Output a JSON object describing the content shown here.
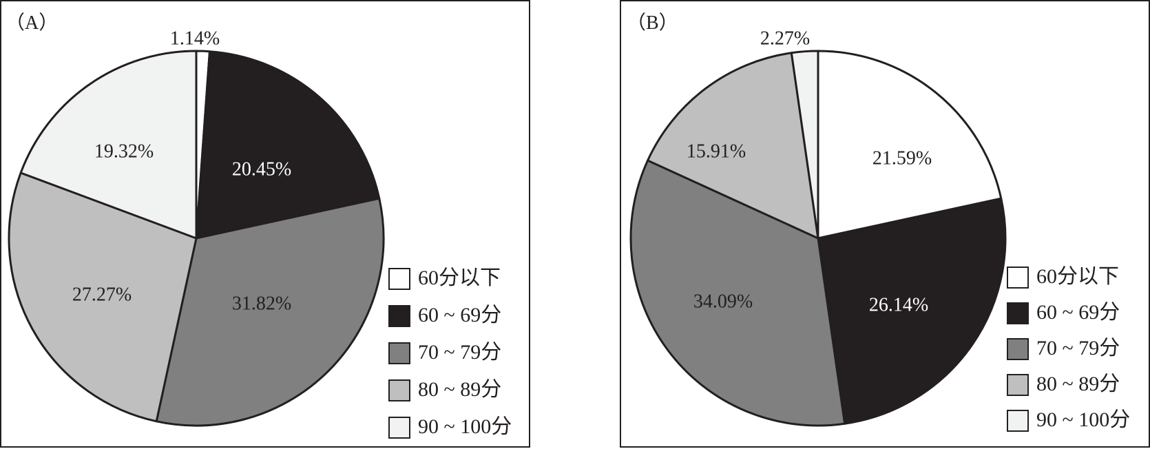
{
  "chart_data": [
    {
      "type": "pie",
      "panel_label": "（A）",
      "categories": [
        "60分以下",
        "60 ~ 69分",
        "70 ~ 79分",
        "80 ~ 89分",
        "90 ~ 100分"
      ],
      "values": [
        1.14,
        20.45,
        31.82,
        27.27,
        19.32
      ],
      "value_labels": [
        "1.14%",
        "20.45%",
        "31.82%",
        "27.27%",
        "19.32%"
      ],
      "colors": [
        "#ffffff",
        "#231f20",
        "#808080",
        "#bfbfbf",
        "#f1f2f2"
      ],
      "start": "top, clockwise",
      "legend_position": "bottom-right"
    },
    {
      "type": "pie",
      "panel_label": "（B）",
      "categories": [
        "60分以下",
        "60 ~ 69分",
        "70 ~ 79分",
        "80 ~ 89分",
        "90 ~ 100分"
      ],
      "values": [
        21.59,
        26.14,
        34.09,
        15.91,
        2.27
      ],
      "value_labels": [
        "21.59%",
        "26.14%",
        "34.09%",
        "15.91%",
        "2.27%"
      ],
      "colors": [
        "#ffffff",
        "#231f20",
        "#808080",
        "#bfbfbf",
        "#f1f2f2"
      ],
      "start": "top, clockwise",
      "legend_position": "bottom-right"
    }
  ]
}
